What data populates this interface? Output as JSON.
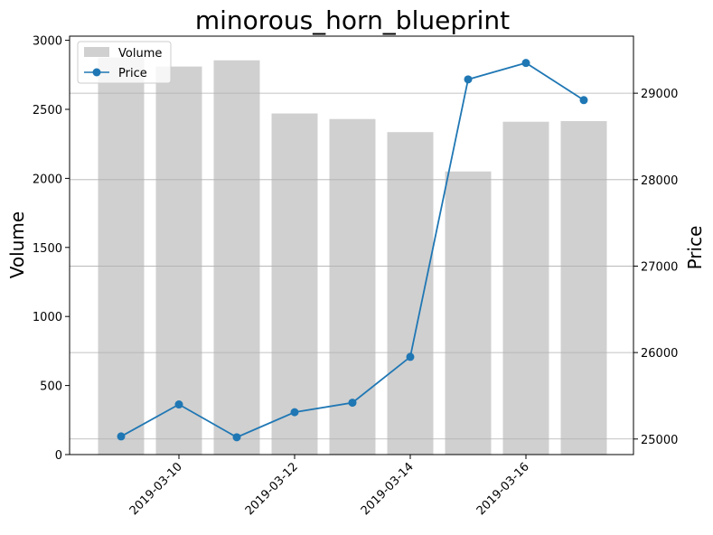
{
  "chart_data": {
    "type": "bar",
    "title": "minorous_horn_blueprint",
    "xlabel": "",
    "ylabel": "Volume",
    "y2label": "Price",
    "categories": [
      "2019-03-09",
      "2019-03-10",
      "2019-03-11",
      "2019-03-12",
      "2019-03-13",
      "2019-03-14",
      "2019-03-15",
      "2019-03-16",
      "2019-03-17"
    ],
    "x_ticks": [
      "2019-03-10",
      "2019-03-12",
      "2019-03-14",
      "2019-03-16"
    ],
    "series": [
      {
        "name": "Volume",
        "type": "bar",
        "axis": "left",
        "color": "#d0d0d0",
        "values": [
          2875,
          2810,
          2855,
          2470,
          2430,
          2335,
          2050,
          2410,
          2415
        ]
      },
      {
        "name": "Price",
        "type": "line",
        "axis": "right",
        "color": "#1f77b4",
        "marker": "circle",
        "values": [
          25030,
          25400,
          25020,
          25310,
          25420,
          25950,
          29160,
          29350,
          28920
        ]
      }
    ],
    "ylim": [
      0,
      3030
    ],
    "y_ticks": [
      0,
      500,
      1000,
      1500,
      2000,
      2500,
      3000
    ],
    "y2lim": [
      24820,
      29660
    ],
    "y2_ticks": [
      25000,
      26000,
      27000,
      28000,
      29000
    ],
    "grid": "horizontal (right axis ticks)",
    "legend": "top-left"
  }
}
